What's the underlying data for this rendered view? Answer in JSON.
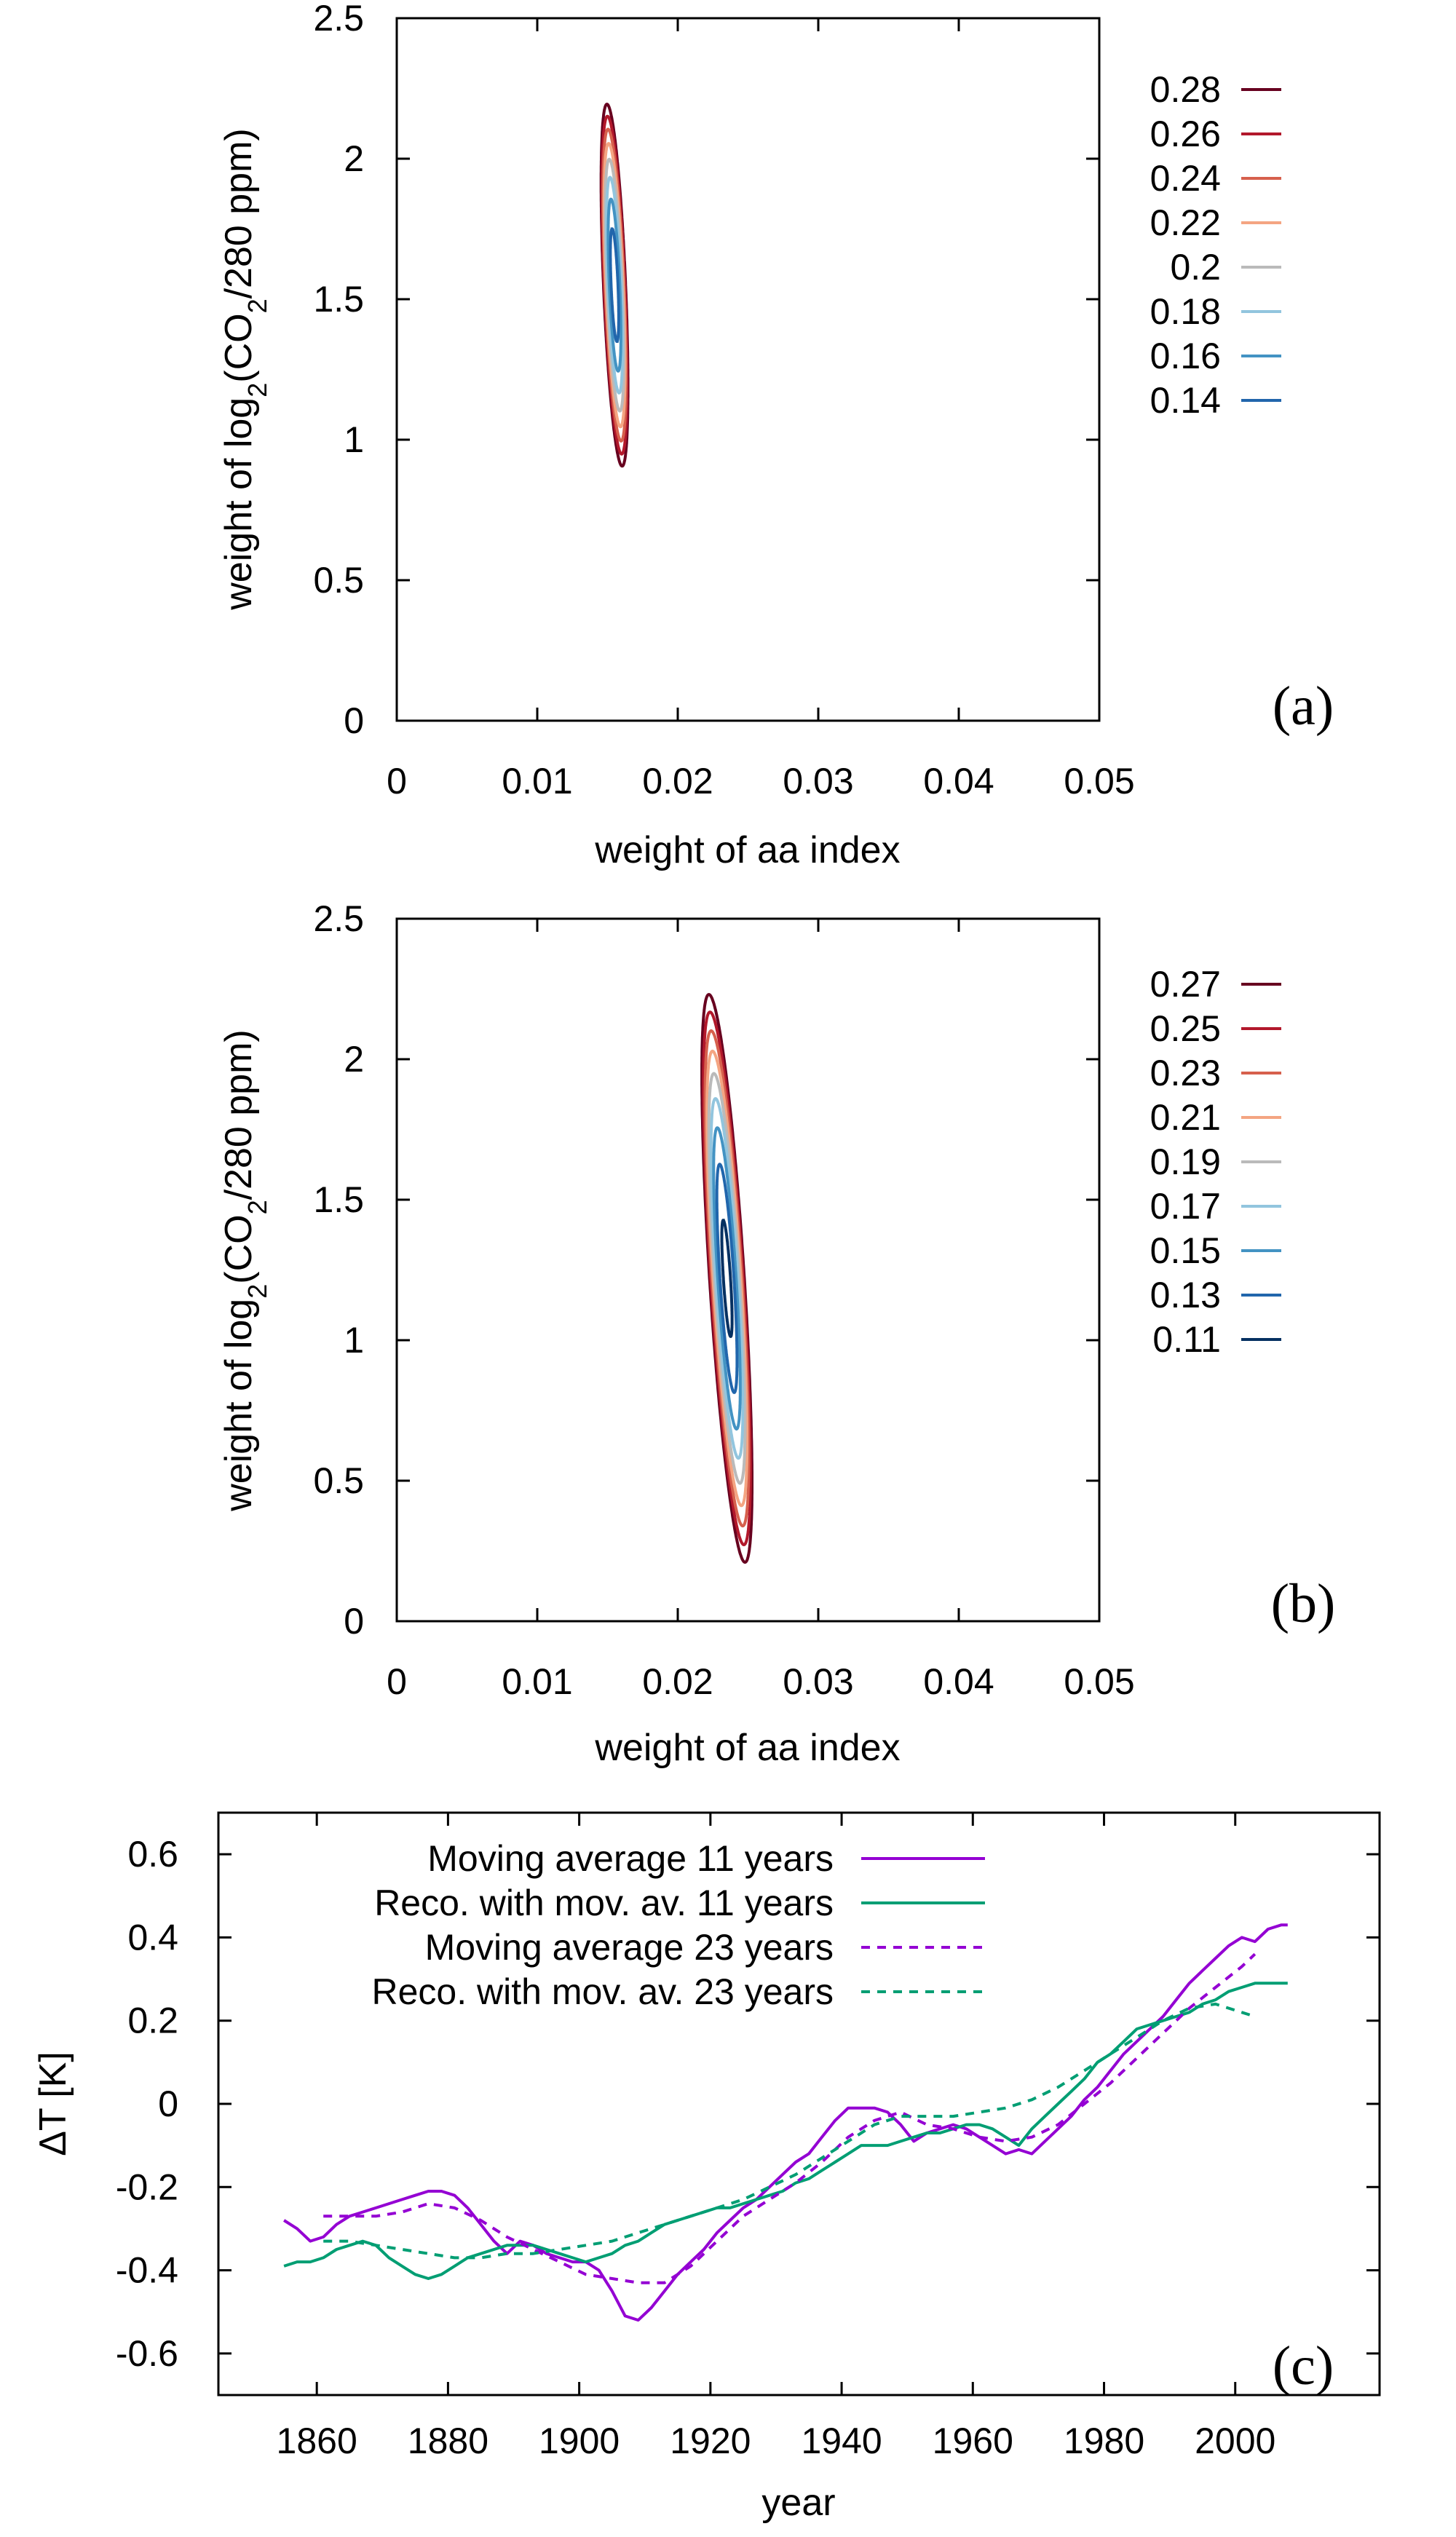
{
  "chart_data": [
    {
      "type": "contour",
      "panel_label": "(a)",
      "xlabel": "weight of aa index",
      "ylabel": "weight of log2(CO2/280 ppm)",
      "ylabel_parts": [
        "weight of log",
        "2",
        "(CO",
        "2",
        "/280 ppm)"
      ],
      "xlim": [
        0,
        0.05
      ],
      "ylim": [
        0,
        2.5
      ],
      "xticks": [
        "0",
        "0.01",
        "0.02",
        "0.03",
        "0.04",
        "0.05"
      ],
      "yticks": [
        "0",
        "0.5",
        "1",
        "1.5",
        "2",
        "2.5"
      ],
      "xtick_values": [
        0,
        0.01,
        0.02,
        0.03,
        0.04,
        0.05
      ],
      "ytick_values": [
        0,
        0.5,
        1,
        1.5,
        2,
        2.5
      ],
      "center": [
        0.0155,
        1.55
      ],
      "minimum_value": 0.125,
      "curvature": {
        "a": 500,
        "b": 0.42,
        "c": 0.55
      },
      "levels": [
        {
          "label": "0.28",
          "value": 0.28,
          "color": "#67001f"
        },
        {
          "label": "0.26",
          "value": 0.26,
          "color": "#b2182b"
        },
        {
          "label": "0.24",
          "value": 0.24,
          "color": "#d6604d"
        },
        {
          "label": "0.22",
          "value": 0.22,
          "color": "#f4a582"
        },
        {
          "label": "0.2",
          "value": 0.2,
          "color": "#bababa"
        },
        {
          "label": "0.18",
          "value": 0.18,
          "color": "#92c5de"
        },
        {
          "label": "0.16",
          "value": 0.16,
          "color": "#4393c3"
        },
        {
          "label": "0.14",
          "value": 0.14,
          "color": "#2166ac"
        }
      ]
    },
    {
      "type": "contour",
      "panel_label": "(b)",
      "xlabel": "weight of aa index",
      "ylabel": "weight of log2(CO2/280 ppm)",
      "ylabel_parts": [
        "weight of log",
        "2",
        "(CO",
        "2",
        "/280 ppm)"
      ],
      "xlim": [
        0,
        0.05
      ],
      "ylim": [
        0,
        2.5
      ],
      "xticks": [
        "0",
        "0.01",
        "0.02",
        "0.03",
        "0.04",
        "0.05"
      ],
      "yticks": [
        "0",
        "0.5",
        "1",
        "1.5",
        "2",
        "2.5"
      ],
      "xtick_values": [
        0,
        0.01,
        0.02,
        0.03,
        0.04,
        0.05
      ],
      "ytick_values": [
        0,
        0.5,
        1,
        1.5,
        2,
        2.5
      ],
      "center": [
        0.0235,
        1.22
      ],
      "minimum_value": 0.103,
      "curvature": {
        "a": 330,
        "b": 0.42,
        "c": 0.34
      },
      "levels": [
        {
          "label": "0.27",
          "value": 0.27,
          "color": "#67001f"
        },
        {
          "label": "0.25",
          "value": 0.25,
          "color": "#b2182b"
        },
        {
          "label": "0.23",
          "value": 0.23,
          "color": "#d6604d"
        },
        {
          "label": "0.21",
          "value": 0.21,
          "color": "#f4a582"
        },
        {
          "label": "0.19",
          "value": 0.19,
          "color": "#bababa"
        },
        {
          "label": "0.17",
          "value": 0.17,
          "color": "#92c5de"
        },
        {
          "label": "0.15",
          "value": 0.15,
          "color": "#4393c3"
        },
        {
          "label": "0.13",
          "value": 0.13,
          "color": "#2166ac"
        },
        {
          "label": "0.11",
          "value": 0.11,
          "color": "#053061"
        }
      ]
    },
    {
      "type": "line",
      "panel_label": "(c)",
      "xlabel": "year",
      "ylabel": "ΔT [K]",
      "xlim": [
        1845,
        2022
      ],
      "ylim": [
        -0.7,
        0.7
      ],
      "xticks": [
        "1860",
        "1880",
        "1900",
        "1920",
        "1940",
        "1960",
        "1980",
        "2000"
      ],
      "yticks": [
        "-0.6",
        "-0.4",
        "-0.2",
        "0",
        "0.2",
        "0.4",
        "0.6"
      ],
      "xtick_values": [
        1860,
        1880,
        1900,
        1920,
        1940,
        1960,
        1980,
        2000
      ],
      "ytick_values": [
        -0.6,
        -0.4,
        -0.2,
        0,
        0.2,
        0.4,
        0.6
      ],
      "legend_position": "top-left",
      "series": [
        {
          "name": "Moving average 11 years",
          "color": "#9400d3",
          "dash": "solid",
          "x": [
            1855,
            1857,
            1859,
            1861,
            1863,
            1865,
            1867,
            1869,
            1871,
            1873,
            1875,
            1877,
            1879,
            1881,
            1883,
            1885,
            1887,
            1889,
            1891,
            1893,
            1895,
            1897,
            1899,
            1901,
            1903,
            1905,
            1907,
            1909,
            1911,
            1913,
            1915,
            1917,
            1919,
            1921,
            1923,
            1925,
            1927,
            1929,
            1931,
            1933,
            1935,
            1937,
            1939,
            1941,
            1943,
            1945,
            1947,
            1949,
            1951,
            1953,
            1955,
            1957,
            1959,
            1961,
            1963,
            1965,
            1967,
            1969,
            1971,
            1973,
            1975,
            1977,
            1979,
            1981,
            1983,
            1985,
            1987,
            1989,
            1991,
            1993,
            1995,
            1997,
            1999,
            2001,
            2003,
            2005,
            2007,
            2008
          ],
          "y": [
            -0.28,
            -0.3,
            -0.33,
            -0.32,
            -0.29,
            -0.27,
            -0.26,
            -0.25,
            -0.24,
            -0.23,
            -0.22,
            -0.21,
            -0.21,
            -0.22,
            -0.25,
            -0.29,
            -0.33,
            -0.36,
            -0.33,
            -0.34,
            -0.36,
            -0.37,
            -0.38,
            -0.38,
            -0.4,
            -0.45,
            -0.51,
            -0.52,
            -0.49,
            -0.45,
            -0.41,
            -0.38,
            -0.35,
            -0.31,
            -0.28,
            -0.25,
            -0.23,
            -0.2,
            -0.17,
            -0.14,
            -0.12,
            -0.08,
            -0.04,
            -0.01,
            -0.01,
            -0.01,
            -0.02,
            -0.05,
            -0.09,
            -0.07,
            -0.06,
            -0.05,
            -0.06,
            -0.08,
            -0.1,
            -0.12,
            -0.11,
            -0.12,
            -0.09,
            -0.06,
            -0.03,
            0.01,
            0.04,
            0.08,
            0.12,
            0.15,
            0.18,
            0.21,
            0.25,
            0.29,
            0.32,
            0.35,
            0.38,
            0.4,
            0.39,
            0.42,
            0.43,
            0.43
          ]
        },
        {
          "name": "Reco. with mov. av. 11 years",
          "color": "#009e73",
          "dash": "solid",
          "x": [
            1855,
            1857,
            1859,
            1861,
            1863,
            1865,
            1867,
            1869,
            1871,
            1873,
            1875,
            1877,
            1879,
            1881,
            1883,
            1885,
            1887,
            1889,
            1891,
            1893,
            1895,
            1897,
            1899,
            1901,
            1903,
            1905,
            1907,
            1909,
            1911,
            1913,
            1915,
            1917,
            1919,
            1921,
            1923,
            1925,
            1927,
            1929,
            1931,
            1933,
            1935,
            1937,
            1939,
            1941,
            1943,
            1945,
            1947,
            1949,
            1951,
            1953,
            1955,
            1957,
            1959,
            1961,
            1963,
            1965,
            1967,
            1969,
            1971,
            1973,
            1975,
            1977,
            1979,
            1981,
            1983,
            1985,
            1987,
            1989,
            1991,
            1993,
            1995,
            1997,
            1999,
            2001,
            2003,
            2005,
            2007,
            2008
          ],
          "y": [
            -0.39,
            -0.38,
            -0.38,
            -0.37,
            -0.35,
            -0.34,
            -0.33,
            -0.34,
            -0.37,
            -0.39,
            -0.41,
            -0.42,
            -0.41,
            -0.39,
            -0.37,
            -0.36,
            -0.35,
            -0.34,
            -0.34,
            -0.34,
            -0.35,
            -0.36,
            -0.37,
            -0.38,
            -0.37,
            -0.36,
            -0.34,
            -0.33,
            -0.31,
            -0.29,
            -0.28,
            -0.27,
            -0.26,
            -0.25,
            -0.25,
            -0.24,
            -0.23,
            -0.22,
            -0.21,
            -0.19,
            -0.18,
            -0.16,
            -0.14,
            -0.12,
            -0.1,
            -0.1,
            -0.1,
            -0.09,
            -0.08,
            -0.07,
            -0.07,
            -0.06,
            -0.05,
            -0.05,
            -0.06,
            -0.08,
            -0.1,
            -0.06,
            -0.03,
            0,
            0.03,
            0.06,
            0.1,
            0.12,
            0.15,
            0.18,
            0.19,
            0.2,
            0.21,
            0.22,
            0.24,
            0.25,
            0.27,
            0.28,
            0.29,
            0.29,
            0.29,
            0.29
          ]
        },
        {
          "name": "Moving average 23 years",
          "color": "#9400d3",
          "dash": "dashed",
          "x": [
            1861,
            1865,
            1869,
            1873,
            1877,
            1881,
            1885,
            1889,
            1893,
            1897,
            1901,
            1905,
            1909,
            1913,
            1917,
            1921,
            1925,
            1929,
            1933,
            1937,
            1941,
            1945,
            1949,
            1953,
            1957,
            1961,
            1965,
            1969,
            1973,
            1977,
            1981,
            1985,
            1989,
            1993,
            1997,
            2001,
            2003
          ],
          "y": [
            -0.27,
            -0.27,
            -0.27,
            -0.26,
            -0.24,
            -0.25,
            -0.28,
            -0.32,
            -0.35,
            -0.38,
            -0.41,
            -0.42,
            -0.43,
            -0.43,
            -0.39,
            -0.33,
            -0.27,
            -0.23,
            -0.19,
            -0.14,
            -0.08,
            -0.04,
            -0.02,
            -0.05,
            -0.06,
            -0.08,
            -0.09,
            -0.08,
            -0.05,
            0,
            0.05,
            0.11,
            0.17,
            0.23,
            0.28,
            0.33,
            0.36
          ]
        },
        {
          "name": "Reco. with mov. av. 23 years",
          "color": "#009e73",
          "dash": "dashed",
          "x": [
            1861,
            1865,
            1869,
            1873,
            1877,
            1881,
            1885,
            1889,
            1893,
            1897,
            1901,
            1905,
            1909,
            1913,
            1917,
            1921,
            1925,
            1929,
            1933,
            1937,
            1941,
            1945,
            1949,
            1953,
            1957,
            1961,
            1965,
            1969,
            1973,
            1977,
            1981,
            1985,
            1989,
            1993,
            1997,
            2001,
            2003
          ],
          "y": [
            -0.33,
            -0.33,
            -0.34,
            -0.35,
            -0.36,
            -0.37,
            -0.37,
            -0.36,
            -0.36,
            -0.35,
            -0.34,
            -0.33,
            -0.31,
            -0.29,
            -0.27,
            -0.25,
            -0.23,
            -0.2,
            -0.17,
            -0.13,
            -0.09,
            -0.05,
            -0.03,
            -0.03,
            -0.03,
            -0.02,
            -0.01,
            0.01,
            0.04,
            0.08,
            0.12,
            0.16,
            0.2,
            0.23,
            0.24,
            0.22,
            0.21
          ]
        }
      ]
    }
  ]
}
